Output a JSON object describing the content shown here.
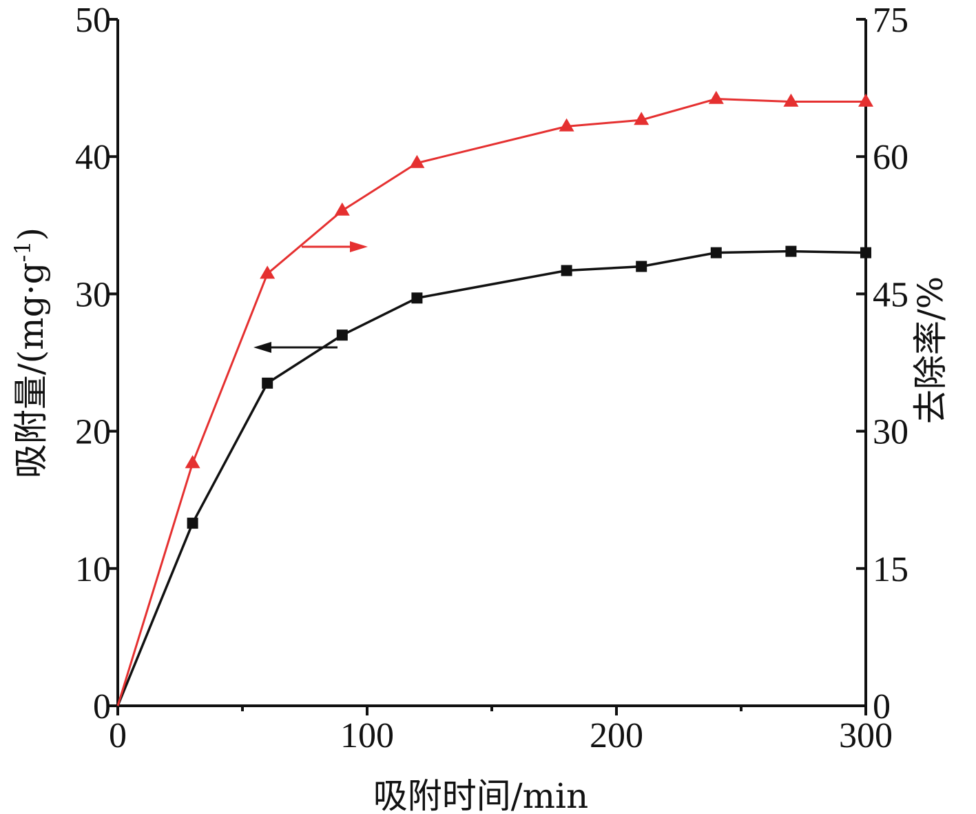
{
  "chart_data": {
    "type": "line",
    "x": [
      0,
      30,
      60,
      90,
      120,
      180,
      210,
      240,
      270,
      300
    ],
    "xlabel": "吸附时间/min",
    "xlim": [
      0,
      300
    ],
    "xticks": [
      "0",
      "100",
      "200",
      "300"
    ],
    "ylabel_left": "吸附量/(mg·g",
    "ylabel_left_sup": "-1",
    "ylabel_left_close": ")",
    "ylim_left": [
      0,
      50
    ],
    "yticks_left": [
      "0",
      "10",
      "20",
      "30",
      "40",
      "50"
    ],
    "ylabel_right": "去除率/%",
    "ylim_right": [
      0,
      75
    ],
    "yticks_right": [
      "0",
      "15",
      "30",
      "45",
      "60",
      "75"
    ],
    "grid": false,
    "series": [
      {
        "axis": "left",
        "marker": "square",
        "color": "#111111",
        "values": [
          0,
          13.3,
          23.5,
          27.0,
          29.7,
          31.7,
          32.0,
          33.0,
          33.1,
          33.0
        ],
        "indicator_arrow": "left"
      },
      {
        "axis": "right",
        "marker": "triangle",
        "color": "#e53030",
        "values": [
          0,
          26.5,
          47.2,
          54.1,
          59.3,
          63.3,
          64.0,
          66.3,
          66.0,
          66.0
        ],
        "indicator_arrow": "right"
      }
    ]
  }
}
